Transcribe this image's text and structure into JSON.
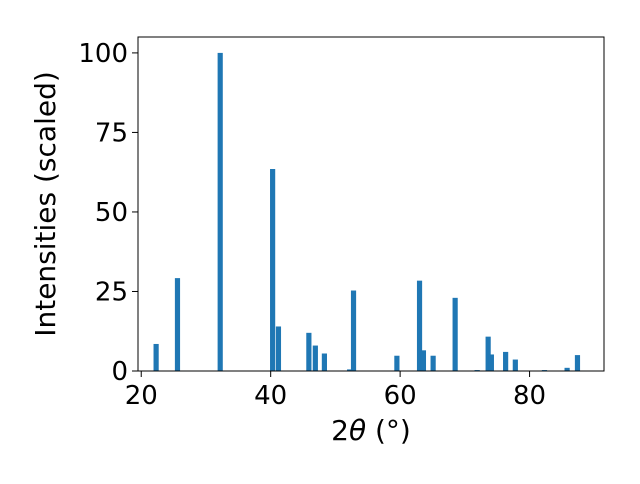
{
  "chart_data": {
    "type": "bar",
    "title": "",
    "xlabel_prefix": "2",
    "xlabel_symbol": "θ",
    "xlabel_suffix": " (°)",
    "ylabel": "Intensities (scaled)",
    "xlim": [
      19.5,
      91.5
    ],
    "ylim": [
      0,
      105
    ],
    "xticks": [
      20,
      40,
      60,
      80
    ],
    "yticks": [
      0,
      25,
      50,
      75,
      100
    ],
    "bar_color": "#1f77b4",
    "bar_width": 0.8,
    "grid": false,
    "legend": "none",
    "x": [
      22.3,
      25.6,
      32.2,
      40.3,
      41.2,
      45.9,
      46.9,
      48.3,
      52.2,
      52.8,
      59.5,
      63.0,
      63.6,
      65.1,
      68.5,
      71.9,
      73.6,
      74.1,
      76.3,
      77.8,
      82.3,
      85.8,
      87.4
    ],
    "values": [
      8.5,
      29.2,
      100,
      63.5,
      14.0,
      12.0,
      8.0,
      5.5,
      0.5,
      25.3,
      4.8,
      28.4,
      6.5,
      4.8,
      23.0,
      0.3,
      10.8,
      5.2,
      6.0,
      3.6,
      0.3,
      1.0,
      5.0
    ]
  }
}
